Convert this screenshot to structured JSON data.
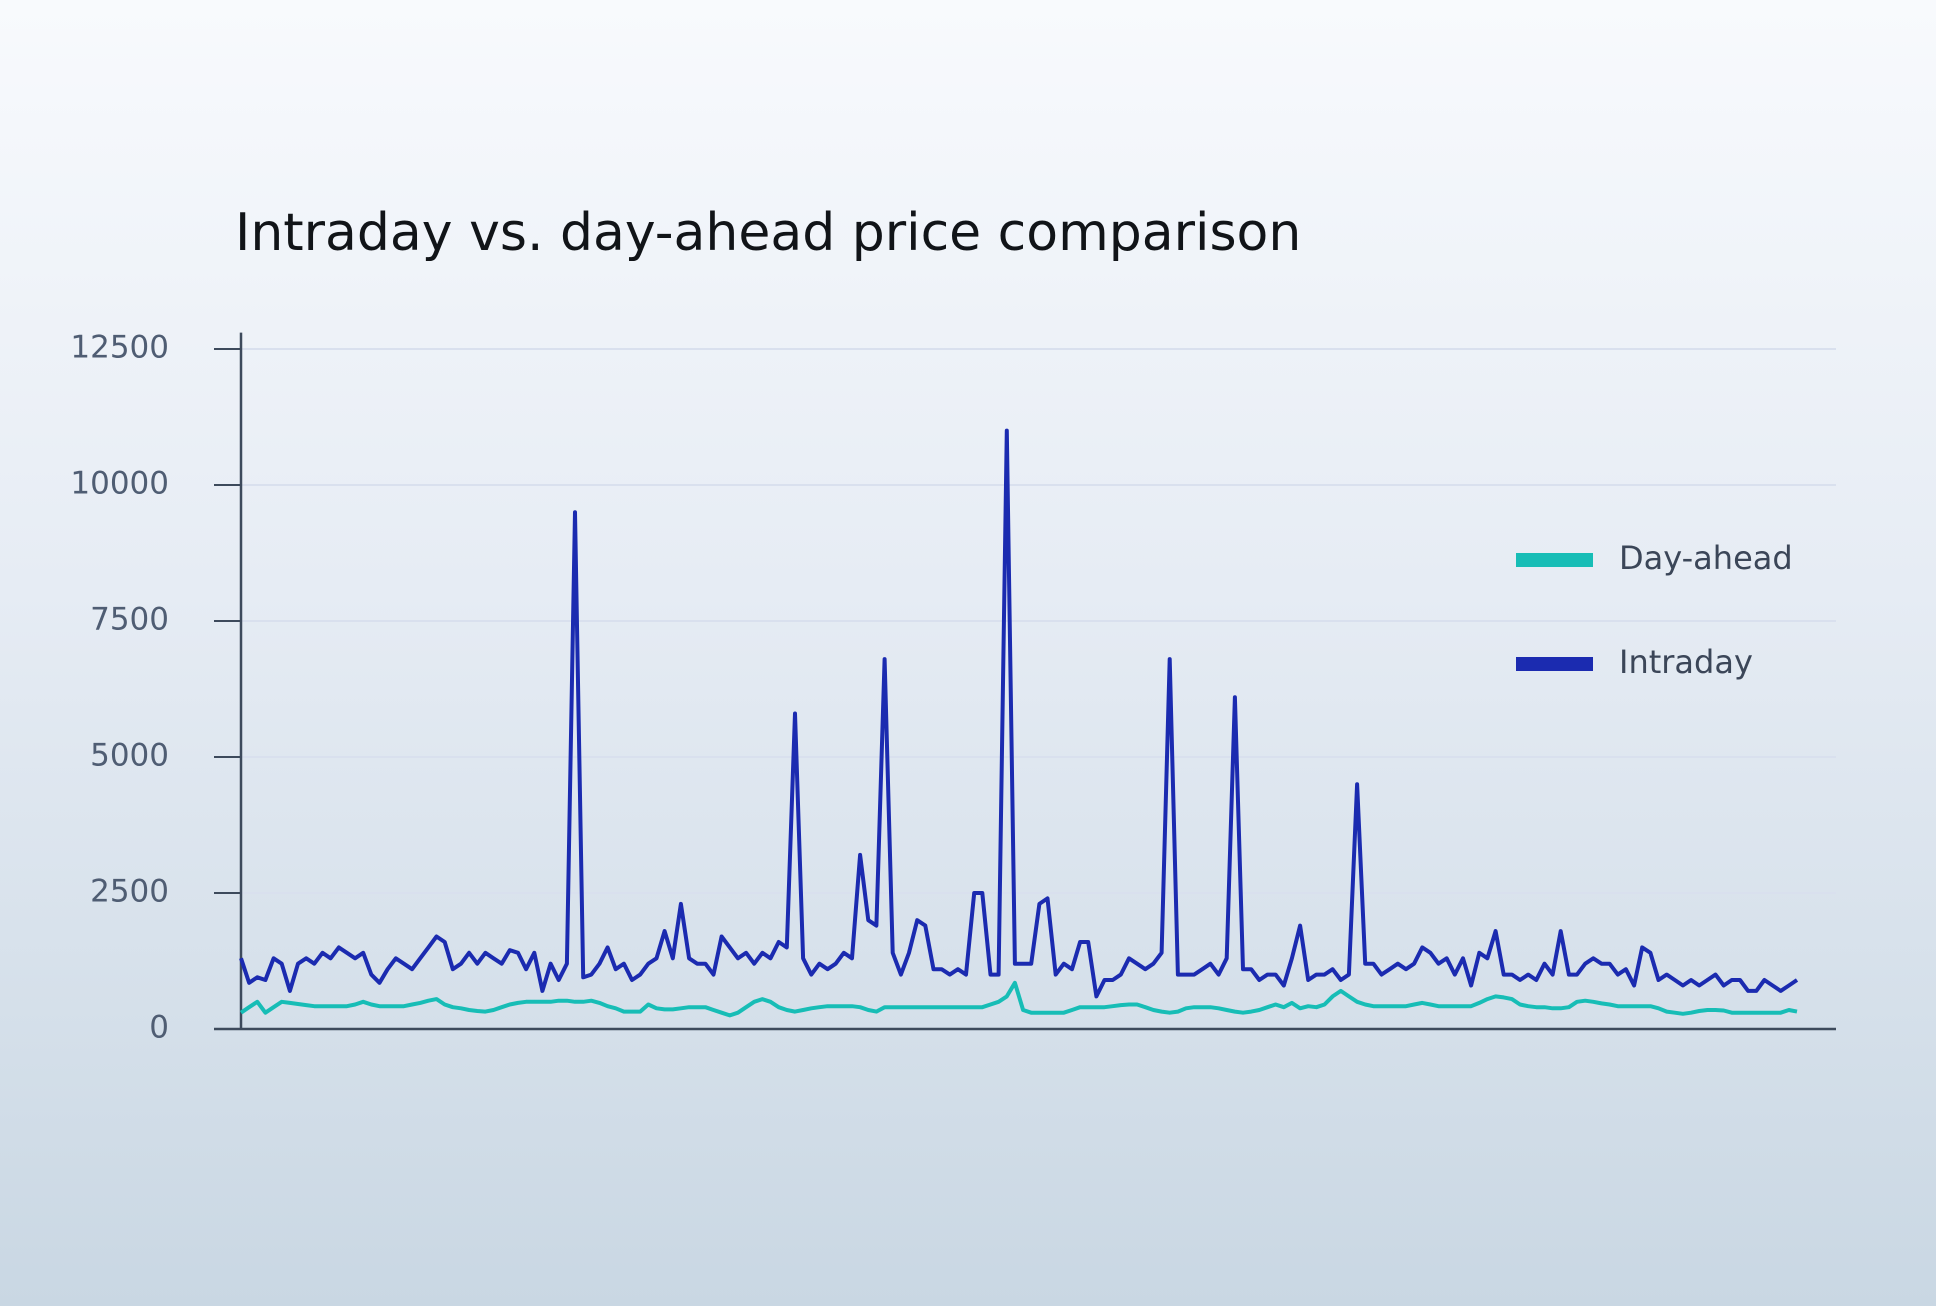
{
  "chart_data": {
    "type": "line",
    "title": "Intraday vs. day-ahead price comparison",
    "ylim": [
      0,
      12800
    ],
    "yticks": [
      0,
      2500,
      5000,
      7500,
      10000,
      12500
    ],
    "grid": true,
    "series": [
      {
        "name": "Day-ahead",
        "color": "#17bdb6",
        "values": [
          300,
          400,
          500,
          300,
          400,
          500,
          480,
          460,
          440,
          420,
          420,
          420,
          420,
          420,
          450,
          500,
          450,
          420,
          420,
          420,
          420,
          450,
          480,
          520,
          550,
          450,
          400,
          380,
          350,
          330,
          320,
          350,
          400,
          450,
          480,
          500,
          500,
          500,
          500,
          520,
          520,
          500,
          500,
          520,
          480,
          420,
          380,
          320,
          320,
          320,
          450,
          380,
          360,
          360,
          380,
          400,
          400,
          400,
          350,
          300,
          250,
          300,
          400,
          500,
          550,
          500,
          400,
          350,
          320,
          350,
          380,
          400,
          420,
          420,
          420,
          420,
          400,
          350,
          320,
          400,
          400,
          400,
          400,
          400,
          400,
          400,
          400,
          400,
          400,
          400,
          400,
          400,
          450,
          500,
          600,
          850,
          350,
          300,
          300,
          300,
          300,
          300,
          350,
          400,
          400,
          400,
          400,
          420,
          440,
          450,
          450,
          400,
          350,
          320,
          300,
          320,
          380,
          400,
          400,
          400,
          380,
          350,
          320,
          300,
          320,
          350,
          400,
          450,
          400,
          480,
          380,
          420,
          400,
          450,
          600,
          700,
          600,
          500,
          450,
          420,
          420,
          420,
          420,
          420,
          450,
          480,
          450,
          420,
          420,
          420,
          420,
          420,
          480,
          550,
          600,
          580,
          550,
          450,
          420,
          400,
          400,
          380,
          380,
          400,
          500,
          520,
          500,
          470,
          450,
          420,
          420,
          420,
          420,
          420,
          380,
          320,
          300,
          280,
          300,
          330,
          350,
          350,
          340,
          300,
          300,
          300,
          300,
          300,
          300,
          300,
          350,
          320
        ]
      },
      {
        "name": "Intraday",
        "color": "#1b2bb0",
        "values": [
          1300,
          850,
          950,
          900,
          1300,
          1200,
          700,
          1200,
          1300,
          1200,
          1400,
          1300,
          1500,
          1400,
          1300,
          1400,
          1000,
          850,
          1100,
          1300,
          1200,
          1100,
          1300,
          1500,
          1700,
          1600,
          1100,
          1200,
          1400,
          1200,
          1400,
          1300,
          1200,
          1450,
          1400,
          1100,
          1400,
          700,
          1200,
          900,
          1200,
          9500,
          950,
          1000,
          1200,
          1500,
          1100,
          1200,
          900,
          1000,
          1200,
          1300,
          1800,
          1300,
          2300,
          1300,
          1200,
          1200,
          1000,
          1700,
          1500,
          1300,
          1400,
          1200,
          1400,
          1300,
          1600,
          1500,
          5800,
          1300,
          1000,
          1200,
          1100,
          1200,
          1400,
          1300,
          3200,
          2000,
          1900,
          6800,
          1400,
          1000,
          1400,
          2000,
          1900,
          1100,
          1100,
          1000,
          1100,
          1000,
          2500,
          2500,
          1000,
          1000,
          11000,
          1200,
          1200,
          1200,
          2300,
          2400,
          1000,
          1200,
          1100,
          1600,
          1600,
          600,
          900,
          900,
          1000,
          1300,
          1200,
          1100,
          1200,
          1400,
          6800,
          1000,
          1000,
          1000,
          1100,
          1200,
          1000,
          1300,
          6100,
          1100,
          1100,
          900,
          1000,
          1000,
          800,
          1300,
          1900,
          900,
          1000,
          1000,
          1100,
          900,
          1000,
          4500,
          1200,
          1200,
          1000,
          1100,
          1200,
          1100,
          1200,
          1500,
          1400,
          1200,
          1300,
          1000,
          1300,
          800,
          1400,
          1300,
          1800,
          1000,
          1000,
          900,
          1000,
          900,
          1200,
          1000,
          1800,
          1000,
          1000,
          1200,
          1300,
          1200,
          1200,
          1000,
          1100,
          800,
          1500,
          1400,
          900,
          1000,
          900,
          800,
          900,
          800,
          900,
          1000,
          800,
          900,
          900,
          700,
          700,
          900,
          800,
          700,
          800,
          900
        ]
      }
    ]
  }
}
